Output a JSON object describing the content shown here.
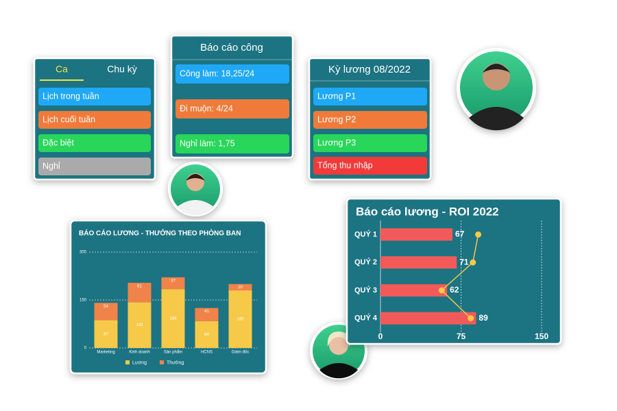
{
  "shift_card": {
    "tabs": [
      "Ca",
      "Chu kỳ"
    ],
    "items": [
      "Lịch trong tuần",
      "Lịch cuối tuần",
      "Đặc biệt",
      "Nghỉ"
    ]
  },
  "attendance_card": {
    "title": "Báo cáo công",
    "items": [
      "Công làm: 18,25/24",
      "Đi muộn: 4/24",
      "Nghỉ làm: 1,75"
    ]
  },
  "payroll_card": {
    "title": "Kỳ lương 08/2022",
    "items": [
      "Lương P1",
      "Lương P2",
      "Lương P3",
      "Tổng thu nhập"
    ]
  },
  "chart_data": [
    {
      "type": "stacked-bar",
      "title": "BÁO CÁO LƯƠNG - THƯỞNG THEO PHÒNG BAN",
      "categories": [
        "Marketing",
        "Kinh doanh",
        "Sản phẩm",
        "HCNS",
        "Giám đốc"
      ],
      "series": [
        {
          "name": "Lương",
          "color": "#f7c948",
          "values": [
            87,
            143,
            184,
            84,
            180
          ]
        },
        {
          "name": "Thưởng",
          "color": "#f0834a",
          "values": [
            54,
            61,
            37,
            41,
            20
          ]
        }
      ],
      "ylim": [
        0,
        300
      ],
      "yticks": [
        0,
        150,
        300
      ],
      "grid": true
    },
    {
      "type": "hbar",
      "title": "Báo cáo lương - ROI 2022",
      "categories": [
        "QUÝ 1",
        "QUÝ 2",
        "QUÝ 3",
        "QUÝ 4"
      ],
      "values": [
        67,
        71,
        62,
        89
      ],
      "color": "#f25a5a",
      "line": {
        "color": "#f7c948",
        "values": [
          91,
          86,
          57,
          84
        ]
      },
      "xlim": [
        0,
        150
      ],
      "xticks": [
        0,
        75,
        150
      ],
      "grid": true
    }
  ]
}
